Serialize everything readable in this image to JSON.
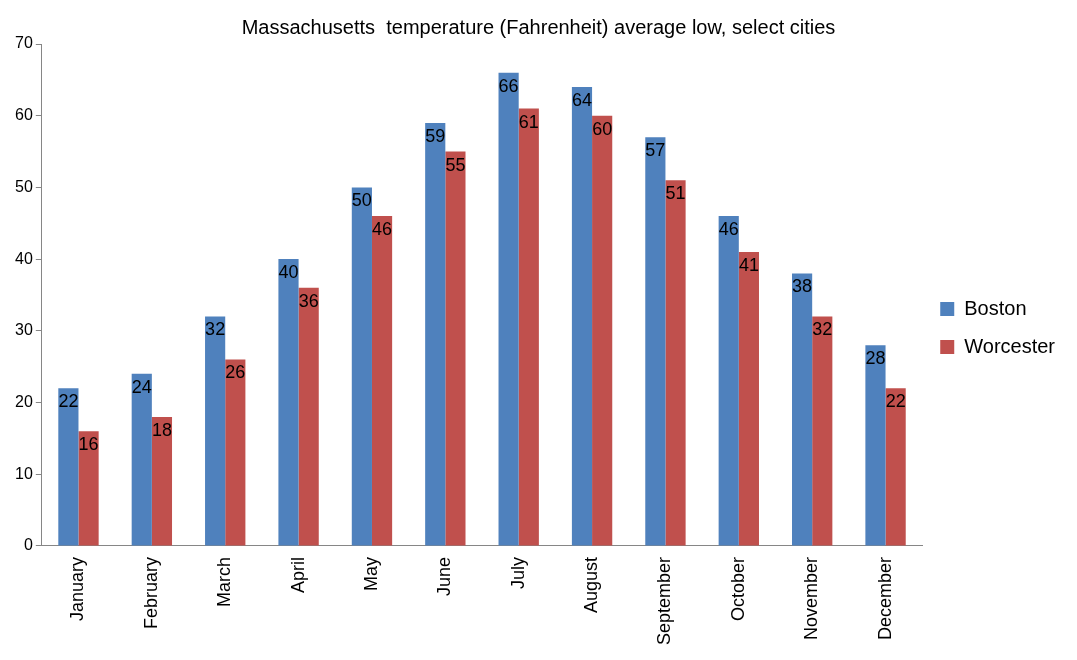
{
  "chart_data": {
    "type": "bar",
    "title": "Massachusetts  temperature (Fahrenheit) average low, select cities",
    "categories": [
      "January",
      "February",
      "March",
      "April",
      "May",
      "June",
      "July",
      "August",
      "September",
      "October",
      "November",
      "December"
    ],
    "series": [
      {
        "name": "Boston",
        "color": "#4f81bd",
        "values": [
          22,
          24,
          32,
          40,
          50,
          59,
          66,
          64,
          57,
          46,
          38,
          28
        ]
      },
      {
        "name": "Worcester",
        "color": "#c0504d",
        "values": [
          16,
          18,
          26,
          36,
          46,
          55,
          61,
          60,
          51,
          41,
          32,
          22
        ]
      }
    ],
    "ylim": [
      0,
      70
    ],
    "yticks": [
      0,
      10,
      20,
      30,
      40,
      50,
      60,
      70
    ],
    "grid": false,
    "legend": "right",
    "data_labels": true
  }
}
